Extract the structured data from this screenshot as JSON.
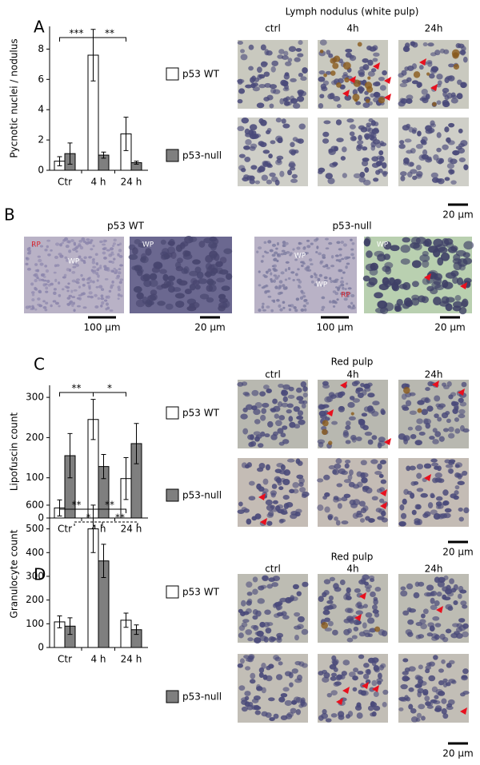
{
  "chart_data": [
    {
      "type": "bar",
      "panel": "A",
      "y_label": "Pycnotic nuclei / nodulus",
      "categories": [
        "Ctr",
        "4 h",
        "24 h"
      ],
      "series": [
        {
          "name": "p53 WT",
          "color": "#ffffff",
          "values": [
            0.6,
            7.6,
            2.4
          ],
          "errors": [
            0.3,
            1.7,
            1.1
          ]
        },
        {
          "name": "p53-null",
          "color": "#7f7f7f",
          "values": [
            1.1,
            1.0,
            0.5
          ],
          "errors": [
            0.7,
            0.2,
            0.1
          ]
        }
      ],
      "ylim": [
        0,
        9.5
      ],
      "yticks": [
        0,
        2,
        4,
        6,
        8
      ],
      "significance": [
        "***",
        "**"
      ]
    },
    {
      "type": "bar",
      "panel": "C",
      "y_label": "Lipofuscin count",
      "categories": [
        "Ctr",
        "4 h",
        "24 h"
      ],
      "series": [
        {
          "name": "p53 WT",
          "color": "#ffffff",
          "values": [
            25,
            245,
            98
          ],
          "errors": [
            20,
            50,
            52
          ]
        },
        {
          "name": "p53-null",
          "color": "#7f7f7f",
          "values": [
            155,
            128,
            185
          ],
          "errors": [
            55,
            30,
            50
          ]
        }
      ],
      "ylim": [
        0,
        330
      ],
      "yticks": [
        0,
        100,
        200,
        300
      ],
      "significance": [
        "**",
        "*"
      ]
    },
    {
      "type": "bar",
      "panel": "D",
      "y_label": "Granulocyte count",
      "categories": [
        "Ctr",
        "4 h",
        "24 h"
      ],
      "series": [
        {
          "name": "p53 WT",
          "color": "#ffffff",
          "values": [
            108,
            500,
            115
          ],
          "errors": [
            25,
            100,
            30
          ]
        },
        {
          "name": "p53-null",
          "color": "#7f7f7f",
          "values": [
            90,
            365,
            75
          ],
          "errors": [
            35,
            70,
            20
          ]
        }
      ],
      "ylim": [
        0,
        620
      ],
      "yticks": [
        0,
        100,
        200,
        300,
        400,
        500,
        600
      ],
      "significance": [
        "**",
        "**",
        "*",
        "**"
      ]
    }
  ],
  "micrographs": {
    "A": {
      "title": "Lymph nodulus (white pulp)",
      "columns": [
        "ctrl",
        "4h",
        "24h"
      ],
      "scale_bar": "20 µm"
    },
    "B": {
      "panel": "B",
      "groups": [
        {
          "title": "p53 WT",
          "images": [
            {
              "labels": [
                "RP",
                "WP"
              ],
              "scale_bar": "100 µm"
            },
            {
              "labels": [
                "WP"
              ],
              "scale_bar": "20 µm"
            }
          ]
        },
        {
          "title": "p53-null",
          "images": [
            {
              "labels": [
                "WP",
                "WP",
                "RP"
              ],
              "scale_bar": "100 µm"
            },
            {
              "labels": [
                "WP"
              ],
              "scale_bar": "20 µm"
            }
          ]
        }
      ]
    },
    "C": {
      "title": "Red pulp",
      "columns": [
        "ctrl",
        "4h",
        "24h"
      ],
      "scale_bar": "20 µm"
    },
    "D": {
      "title": "Red pulp",
      "columns": [
        "ctrl",
        "4h",
        "24h"
      ],
      "scale_bar": "20 µm"
    }
  }
}
